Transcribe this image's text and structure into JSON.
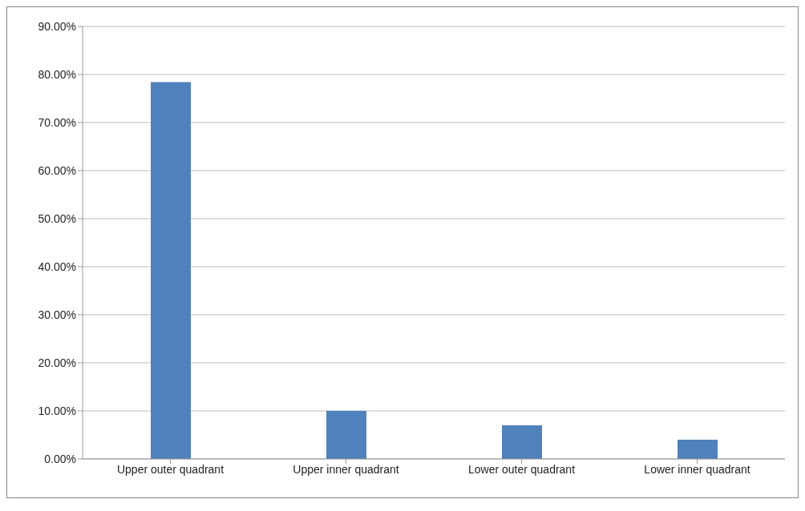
{
  "chart_data": {
    "type": "bar",
    "categories": [
      "Upper outer quadrant",
      "Upper inner quadrant",
      "Lower outer quadrant",
      "Lower inner quadrant"
    ],
    "values": [
      78.4,
      10.0,
      7.0,
      4.0
    ],
    "color": "#4f81bd",
    "ylim": [
      0,
      90
    ],
    "yticks": [
      {
        "value": 0,
        "label": "0.00%"
      },
      {
        "value": 10,
        "label": "10.00%"
      },
      {
        "value": 20,
        "label": "20.00%"
      },
      {
        "value": 30,
        "label": "30.00%"
      },
      {
        "value": 40,
        "label": "40.00%"
      },
      {
        "value": 50,
        "label": "50.00%"
      },
      {
        "value": 60,
        "label": "60.00%"
      },
      {
        "value": 70,
        "label": "70.00%"
      },
      {
        "value": 80,
        "label": "80.00%"
      },
      {
        "value": 90,
        "label": "90.00%"
      }
    ],
    "grid": "y",
    "legend": false
  }
}
